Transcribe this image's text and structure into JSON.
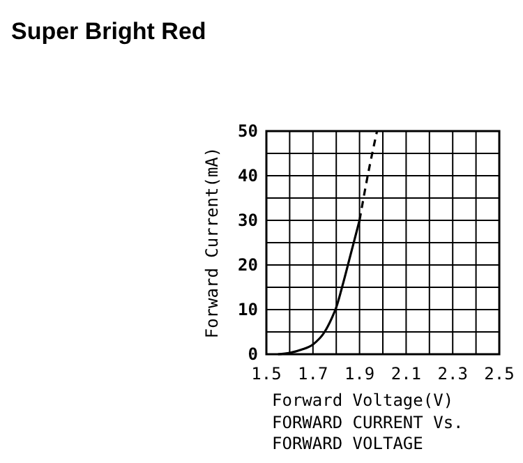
{
  "chart_data": {
    "type": "line",
    "title": "Super Bright Red",
    "xlabel": "Forward Voltage(V)",
    "ylabel": "Forward Current(mA)",
    "annotations": [
      "FORWARD CURRENT Vs.",
      "FORWARD VOLTAGE"
    ],
    "xlim": [
      1.5,
      2.5
    ],
    "ylim": [
      0,
      50
    ],
    "xticks": [
      1.5,
      {
        "value": 1.6,
        "label": null
      },
      1.7,
      {
        "value": 1.8,
        "label": null
      },
      1.9,
      {
        "value": 2.0,
        "label": null
      },
      2.1,
      {
        "value": 2.2,
        "label": null
      },
      2.3,
      {
        "value": 2.4,
        "label": null
      },
      2.5
    ],
    "yticks": [
      0,
      {
        "value": 5,
        "label": null
      },
      10,
      {
        "value": 15,
        "label": null
      },
      20,
      {
        "value": 25,
        "label": null
      },
      30,
      {
        "value": 35,
        "label": null
      },
      40,
      {
        "value": 45,
        "label": null
      },
      50
    ],
    "grid": true,
    "marker": "none",
    "series": [
      {
        "color": "#000000",
        "line_style": "solid",
        "x": [
          1.55,
          1.6,
          1.65,
          1.7,
          1.75,
          1.78,
          1.8,
          1.83,
          1.86,
          1.9
        ],
        "values": [
          0,
          0.3,
          1,
          2.2,
          5,
          8,
          10.5,
          16,
          22,
          30
        ]
      },
      {
        "color": "#000000",
        "line_style": "dashed",
        "x": [
          1.9,
          1.935,
          1.975
        ],
        "values": [
          30,
          40,
          50
        ]
      }
    ]
  }
}
